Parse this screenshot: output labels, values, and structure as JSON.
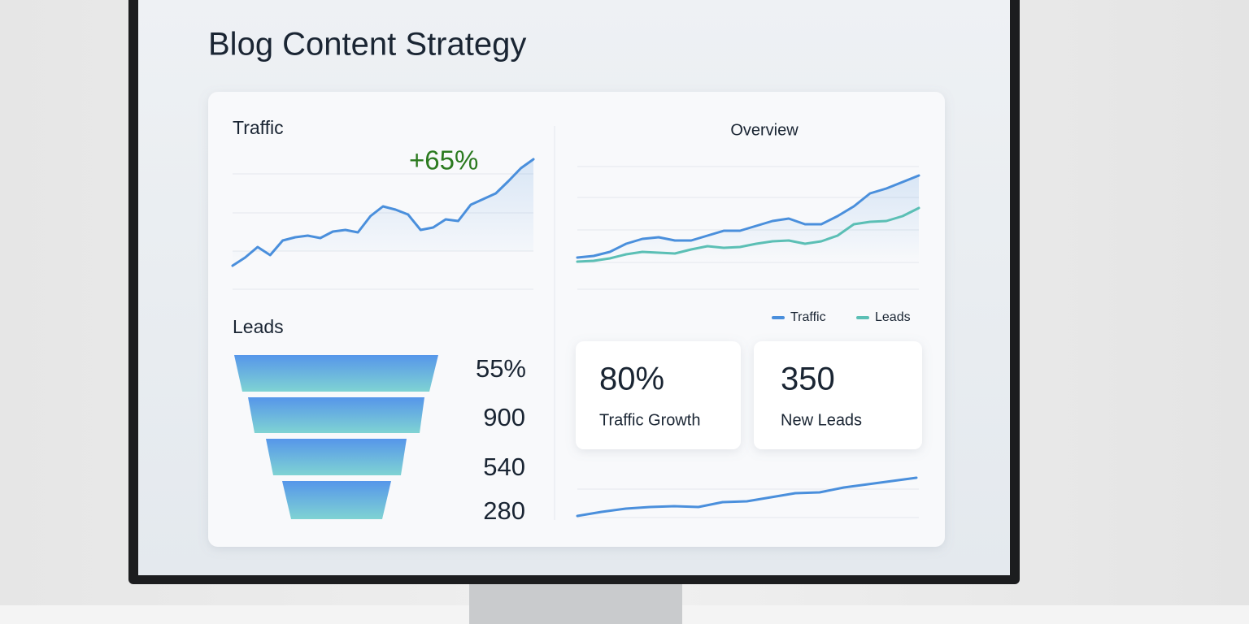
{
  "header": {
    "title": "Blog Content Strategy"
  },
  "traffic": {
    "title": "Traffic",
    "change": "+65%",
    "color": "#4a8fdc",
    "values": [
      13,
      23,
      36,
      26,
      44,
      48,
      50,
      47,
      55,
      57,
      54,
      74,
      86,
      82,
      76,
      57,
      60,
      70,
      68,
      88,
      95,
      102,
      117,
      133,
      144
    ]
  },
  "overview": {
    "title": "Overview",
    "series": [
      {
        "name": "Traffic",
        "color": "#4a8fdc",
        "values": [
          23,
          25,
          30,
          40,
          46,
          48,
          44,
          44,
          50,
          56,
          56,
          62,
          68,
          71,
          64,
          64,
          74,
          86,
          102,
          108,
          116,
          124
        ]
      },
      {
        "name": "Leads",
        "color": "#5bbfb5",
        "values": [
          18,
          19,
          22,
          27,
          30,
          29,
          28,
          33,
          37,
          35,
          36,
          40,
          43,
          44,
          40,
          43,
          50,
          64,
          67,
          68,
          74,
          84
        ]
      }
    ]
  },
  "leads": {
    "title": "Leads",
    "funnel": [
      "55%",
      "900",
      "540",
      "280"
    ]
  },
  "kpis": [
    {
      "value": "80%",
      "label": "Traffic Growth"
    },
    {
      "value": "350",
      "label": "New Leads"
    }
  ],
  "sparkline": {
    "color": "#4a8fdc",
    "values": [
      5,
      10,
      14,
      16,
      17,
      16,
      22,
      23,
      28,
      33,
      34,
      40,
      44,
      48,
      52
    ]
  }
}
